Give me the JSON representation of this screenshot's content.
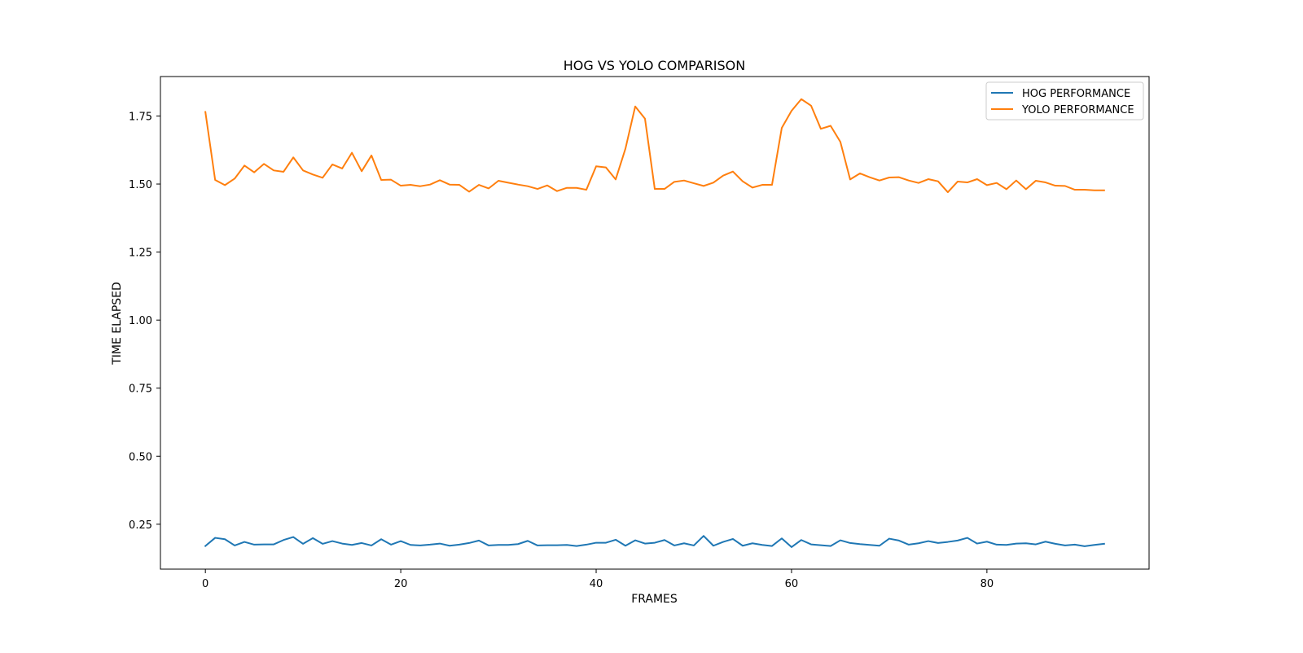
{
  "chart_data": {
    "type": "line",
    "title": "HOG VS YOLO COMPARISON",
    "xlabel": "FRAMES",
    "ylabel": "TIME ELAPSED",
    "xlim": [
      -4.6,
      96.6
    ],
    "ylim": [
      0.085,
      1.895
    ],
    "xticks": [
      0,
      20,
      40,
      60,
      80
    ],
    "xtick_labels": [
      "0",
      "20",
      "40",
      "60",
      "80"
    ],
    "yticks": [
      0.25,
      0.5,
      0.75,
      1.0,
      1.25,
      1.5,
      1.75
    ],
    "ytick_labels": [
      "0.25",
      "0.50",
      "0.75",
      "1.00",
      "1.25",
      "1.50",
      "1.75"
    ],
    "grid": false,
    "legend": "top-right",
    "colors": {
      "hog": "#1f77b4",
      "yolo": "#ff7f0e"
    },
    "x": [
      0,
      1,
      2,
      3,
      4,
      5,
      6,
      7,
      8,
      9,
      10,
      11,
      12,
      13,
      14,
      15,
      16,
      17,
      18,
      19,
      20,
      21,
      22,
      23,
      24,
      25,
      26,
      27,
      28,
      29,
      30,
      31,
      32,
      33,
      34,
      35,
      36,
      37,
      38,
      39,
      40,
      41,
      42,
      43,
      44,
      45,
      46,
      47,
      48,
      49,
      50,
      51,
      52,
      53,
      54,
      55,
      56,
      57,
      58,
      59,
      60,
      61,
      62,
      63,
      64,
      65,
      66,
      67,
      68,
      69,
      70,
      71,
      72,
      73,
      74,
      75,
      76,
      77,
      78,
      79,
      80,
      81,
      82,
      83,
      84,
      85,
      86,
      87,
      88,
      89,
      90,
      91,
      92
    ],
    "series": [
      {
        "name": "HOG PERFORMANCE",
        "color": "#1f77b4",
        "values": [
          0.17,
          0.2,
          0.195,
          0.172,
          0.185,
          0.175,
          0.176,
          0.176,
          0.192,
          0.203,
          0.178,
          0.199,
          0.178,
          0.188,
          0.179,
          0.174,
          0.181,
          0.172,
          0.195,
          0.175,
          0.188,
          0.174,
          0.172,
          0.175,
          0.179,
          0.171,
          0.175,
          0.181,
          0.19,
          0.172,
          0.174,
          0.174,
          0.177,
          0.189,
          0.172,
          0.173,
          0.173,
          0.174,
          0.17,
          0.175,
          0.182,
          0.182,
          0.193,
          0.171,
          0.191,
          0.179,
          0.182,
          0.192,
          0.172,
          0.18,
          0.172,
          0.207,
          0.171,
          0.185,
          0.196,
          0.171,
          0.18,
          0.174,
          0.17,
          0.198,
          0.166,
          0.192,
          0.176,
          0.173,
          0.17,
          0.191,
          0.181,
          0.177,
          0.174,
          0.171,
          0.197,
          0.19,
          0.175,
          0.18,
          0.188,
          0.181,
          0.185,
          0.19,
          0.2,
          0.179,
          0.186,
          0.175,
          0.174,
          0.179,
          0.18,
          0.176,
          0.186,
          0.178,
          0.172,
          0.175,
          0.169,
          0.174,
          0.178
        ]
      },
      {
        "name": "YOLO PERFORMANCE",
        "color": "#ff7f0e",
        "values": [
          1.765,
          1.515,
          1.496,
          1.52,
          1.568,
          1.543,
          1.574,
          1.55,
          1.545,
          1.598,
          1.55,
          1.535,
          1.523,
          1.572,
          1.557,
          1.615,
          1.547,
          1.605,
          1.515,
          1.516,
          1.494,
          1.497,
          1.492,
          1.498,
          1.514,
          1.498,
          1.497,
          1.472,
          1.497,
          1.484,
          1.512,
          1.505,
          1.498,
          1.492,
          1.482,
          1.495,
          1.474,
          1.486,
          1.486,
          1.479,
          1.565,
          1.561,
          1.517,
          1.63,
          1.785,
          1.74,
          1.482,
          1.482,
          1.508,
          1.513,
          1.503,
          1.493,
          1.505,
          1.531,
          1.546,
          1.51,
          1.487,
          1.497,
          1.497,
          1.706,
          1.769,
          1.812,
          1.788,
          1.703,
          1.714,
          1.655,
          1.517,
          1.539,
          1.525,
          1.513,
          1.524,
          1.525,
          1.513,
          1.504,
          1.518,
          1.51,
          1.47,
          1.509,
          1.506,
          1.518,
          1.496,
          1.504,
          1.481,
          1.513,
          1.481,
          1.512,
          1.506,
          1.494,
          1.493,
          1.479,
          1.479,
          1.477,
          1.477
        ]
      }
    ]
  }
}
